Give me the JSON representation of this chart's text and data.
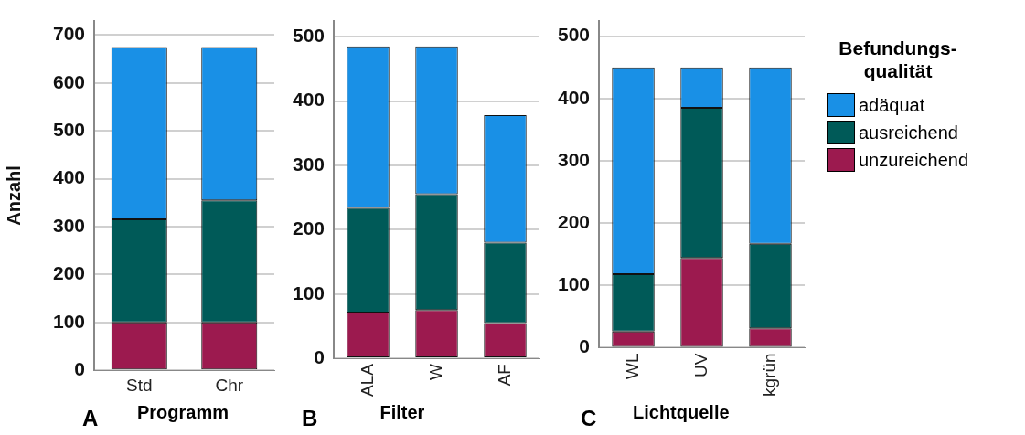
{
  "chart_data": [
    {
      "type": "bar",
      "stacked": true,
      "xlabel": "Programm",
      "ylabel": "Anzahl",
      "annotations": [
        "A"
      ],
      "categories": [
        "Std",
        "Chr"
      ],
      "ylim": [
        0,
        730
      ],
      "yticks": [
        0,
        100,
        200,
        300,
        400,
        500,
        600,
        700
      ],
      "grid": "y",
      "legend": false,
      "series": [
        {
          "color": "#9c1a4f",
          "values": [
            100,
            100
          ]
        },
        {
          "color": "#005a58",
          "values": [
            215,
            255
          ]
        },
        {
          "color": "#1990e6",
          "values": [
            360,
            320
          ]
        }
      ]
    },
    {
      "type": "bar",
      "stacked": true,
      "xlabel": "Filter",
      "annotations": [
        "B"
      ],
      "categories": [
        "ALA",
        "W",
        "AF"
      ],
      "ylim": [
        0,
        525
      ],
      "yticks": [
        0,
        100,
        200,
        300,
        400,
        500
      ],
      "grid": "y",
      "legend": false,
      "series": [
        {
          "color": "#9c1a4f",
          "values": [
            71,
            75,
            55
          ]
        },
        {
          "color": "#005a58",
          "values": [
            163,
            180,
            125
          ]
        },
        {
          "color": "#1990e6",
          "values": [
            251,
            230,
            198
          ]
        }
      ]
    },
    {
      "type": "bar",
      "stacked": true,
      "xlabel": "Lichtquelle",
      "annotations": [
        "C"
      ],
      "categories": [
        "WL",
        "UV",
        "kgrün"
      ],
      "ylim": [
        0,
        525
      ],
      "yticks": [
        0,
        100,
        200,
        300,
        400,
        500
      ],
      "grid": "y",
      "legend": "right",
      "legend_title": "Befundungs-qualität",
      "series": [
        {
          "name": "unzureichend",
          "color": "#9c1a4f",
          "values": [
            26,
            144,
            31
          ]
        },
        {
          "name": "ausreichend",
          "color": "#005a58",
          "values": [
            92,
            241,
            136
          ]
        },
        {
          "name": "adäquat",
          "color": "#1990e6",
          "values": [
            332,
            65,
            283
          ]
        }
      ]
    }
  ]
}
